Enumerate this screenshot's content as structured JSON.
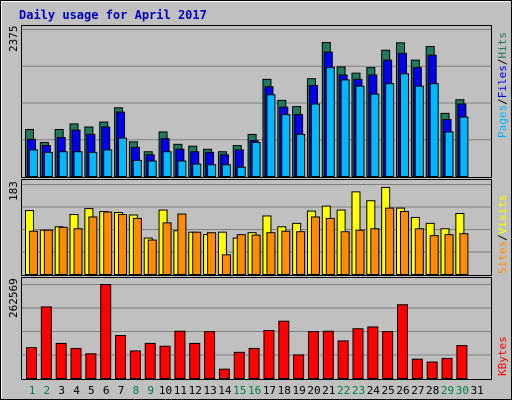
{
  "chart_data": [
    {
      "type": "bar",
      "title": "Daily usage for April 2017",
      "categories": [
        "1",
        "2",
        "3",
        "4",
        "5",
        "6",
        "7",
        "8",
        "9",
        "10",
        "11",
        "12",
        "13",
        "14",
        "15",
        "16",
        "17",
        "18",
        "19",
        "20",
        "21",
        "22",
        "23",
        "24",
        "25",
        "26",
        "27",
        "28",
        "29",
        "30",
        "31"
      ],
      "weekend_days": [
        "1",
        "2",
        "8",
        "9",
        "15",
        "16",
        "22",
        "23",
        "29",
        "30"
      ],
      "ylim": [
        0,
        2375
      ],
      "ymax_label": "2375",
      "ylabel_parts": [
        "Pages",
        "Files",
        "Hits"
      ],
      "ylabel_separator": "/",
      "series": [
        {
          "name": "Hits",
          "color": "#1f7a60",
          "values": [
            760,
            550,
            760,
            850,
            800,
            880,
            1110,
            560,
            400,
            720,
            520,
            490,
            440,
            400,
            500,
            680,
            1570,
            1230,
            1130,
            1580,
            2165,
            1770,
            1670,
            1760,
            2040,
            2160,
            1880,
            2100,
            1020,
            1240,
            0
          ]
        },
        {
          "name": "Files",
          "color": "#0000ee",
          "values": [
            600,
            500,
            630,
            750,
            680,
            800,
            1040,
            470,
            350,
            610,
            440,
            400,
            390,
            350,
            430,
            580,
            1450,
            1120,
            1000,
            1470,
            2010,
            1640,
            1570,
            1640,
            1880,
            1990,
            1760,
            1960,
            920,
            1170,
            0
          ]
        },
        {
          "name": "Pages",
          "color": "#00b8ff",
          "values": [
            430,
            390,
            400,
            400,
            390,
            430,
            620,
            260,
            250,
            400,
            250,
            200,
            190,
            190,
            150,
            550,
            1320,
            1000,
            680,
            1170,
            1760,
            1560,
            1460,
            1330,
            1500,
            1660,
            1460,
            1500,
            720,
            960,
            0
          ]
        }
      ]
    },
    {
      "type": "bar",
      "categories": [
        "1",
        "2",
        "3",
        "4",
        "5",
        "6",
        "7",
        "8",
        "9",
        "10",
        "11",
        "12",
        "13",
        "14",
        "15",
        "16",
        "17",
        "18",
        "19",
        "20",
        "21",
        "22",
        "23",
        "24",
        "25",
        "26",
        "27",
        "28",
        "29",
        "30",
        "31"
      ],
      "ylim": [
        0,
        183
      ],
      "ymax_label": "183",
      "ylabel_parts": [
        "Sites",
        "Visits"
      ],
      "ylabel_separator": "/",
      "series": [
        {
          "name": "Visits",
          "color": "#ffff00",
          "values": [
            130,
            90,
            97,
            122,
            134,
            128,
            126,
            121,
            74,
            131,
            89,
            86,
            81,
            86,
            74,
            85,
            119,
            97,
            104,
            129,
            139,
            131,
            168,
            150,
            177,
            135,
            116,
            104,
            93,
            124,
            0
          ]
        },
        {
          "name": "Sites",
          "color": "#ff8c00",
          "values": [
            88,
            90,
            96,
            93,
            117,
            127,
            122,
            114,
            70,
            105,
            123,
            86,
            85,
            40,
            81,
            80,
            85,
            88,
            87,
            117,
            114,
            87,
            90,
            93,
            135,
            128,
            93,
            79,
            81,
            83,
            0
          ]
        }
      ]
    },
    {
      "type": "bar",
      "categories": [
        "1",
        "2",
        "3",
        "4",
        "5",
        "6",
        "7",
        "8",
        "9",
        "10",
        "11",
        "12",
        "13",
        "14",
        "15",
        "16",
        "17",
        "18",
        "19",
        "20",
        "21",
        "22",
        "23",
        "24",
        "25",
        "26",
        "27",
        "28",
        "29",
        "30",
        "31"
      ],
      "ylim": [
        0,
        262569
      ],
      "ymax_label": "262569",
      "ylabel_parts": [
        "KBytes"
      ],
      "ylabel_separator": "",
      "series": [
        {
          "name": "KBytes",
          "color": "#ff0000",
          "values": [
            86000,
            200000,
            98000,
            84000,
            69000,
            262569,
            120000,
            77000,
            98000,
            90000,
            132000,
            98000,
            131000,
            26000,
            73000,
            84000,
            134000,
            160000,
            66000,
            131000,
            132000,
            105000,
            139000,
            144000,
            131000,
            206000,
            54000,
            46000,
            56000,
            92000,
            0
          ]
        }
      ]
    }
  ],
  "colors": {
    "background": "#c0c0c0",
    "title": "#0000c0",
    "gridline": "#808080",
    "axis_weekday": "#000000",
    "axis_weekend": "#008040",
    "hits": "#1f7a60",
    "files": "#0000ee",
    "pages": "#00b8ff",
    "visits": "#ffff00",
    "sites": "#ff8c00",
    "kbytes": "#ff0000"
  }
}
